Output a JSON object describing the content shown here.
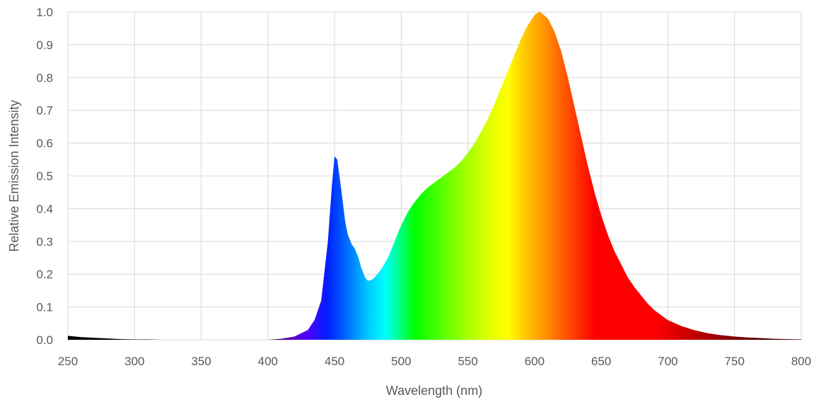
{
  "chart_data": {
    "type": "area",
    "title": "",
    "xlabel": "Wavelength (nm)",
    "ylabel": "Relative Emission Intensity",
    "xlim": [
      250,
      800
    ],
    "ylim": [
      0,
      1.0
    ],
    "x_ticks": [
      250,
      300,
      350,
      400,
      450,
      500,
      550,
      600,
      650,
      700,
      750,
      800
    ],
    "x_tick_labels": [
      "250",
      "300",
      "350",
      "400",
      "450",
      "500",
      "550",
      "600",
      "650",
      "700",
      "750",
      "800"
    ],
    "y_ticks": [
      0,
      0.1,
      0.2,
      0.3,
      0.4,
      0.5,
      0.6,
      0.7,
      0.8,
      0.9,
      1.0
    ],
    "y_tick_labels": [
      "0.0",
      "0.1",
      "0.2",
      "0.3",
      "0.4",
      "0.5",
      "0.6",
      "0.7",
      "0.8",
      "0.9",
      "1.0"
    ],
    "grid": "vertical and horizontal",
    "legend": "none",
    "fill": "visible-spectrum gradient by wavelength",
    "series": [
      {
        "x": [
          250,
          260,
          270,
          280,
          290,
          300,
          310,
          320,
          350,
          400,
          410,
          420,
          430,
          435,
          440,
          445,
          448,
          450,
          452,
          455,
          458,
          460,
          463,
          465,
          468,
          470,
          473,
          475,
          478,
          480,
          485,
          490,
          495,
          500,
          505,
          510,
          515,
          520,
          525,
          530,
          535,
          540,
          545,
          550,
          555,
          560,
          565,
          570,
          575,
          580,
          585,
          590,
          595,
          600,
          603,
          605,
          610,
          615,
          620,
          625,
          630,
          635,
          640,
          645,
          650,
          655,
          660,
          665,
          670,
          675,
          680,
          685,
          690,
          695,
          700,
          710,
          720,
          730,
          740,
          750,
          760,
          770,
          780,
          790,
          800
        ],
        "y": [
          0.012,
          0.008,
          0.006,
          0.004,
          0.002,
          0.001,
          0.001,
          0.0,
          0.0,
          0.0,
          0.003,
          0.01,
          0.03,
          0.06,
          0.12,
          0.3,
          0.47,
          0.56,
          0.55,
          0.46,
          0.36,
          0.32,
          0.29,
          0.28,
          0.25,
          0.22,
          0.19,
          0.18,
          0.183,
          0.19,
          0.215,
          0.25,
          0.3,
          0.35,
          0.39,
          0.42,
          0.445,
          0.465,
          0.48,
          0.495,
          0.51,
          0.525,
          0.545,
          0.57,
          0.6,
          0.635,
          0.675,
          0.72,
          0.77,
          0.82,
          0.87,
          0.92,
          0.96,
          0.99,
          1.0,
          0.998,
          0.98,
          0.94,
          0.88,
          0.8,
          0.71,
          0.62,
          0.53,
          0.45,
          0.38,
          0.32,
          0.27,
          0.23,
          0.19,
          0.16,
          0.135,
          0.11,
          0.09,
          0.075,
          0.06,
          0.042,
          0.029,
          0.02,
          0.014,
          0.01,
          0.007,
          0.005,
          0.003,
          0.002,
          0.001
        ]
      }
    ]
  }
}
